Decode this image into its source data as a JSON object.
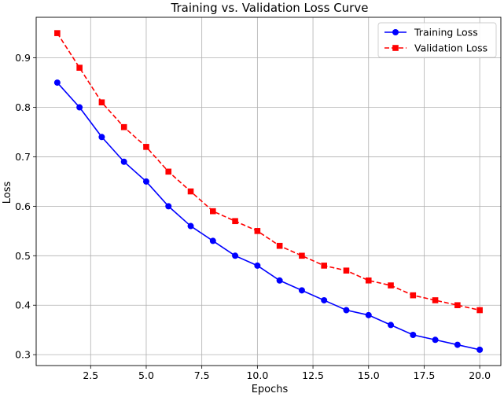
{
  "chart_data": {
    "type": "line",
    "title": "Training vs. Validation Loss Curve",
    "xlabel": "Epochs",
    "ylabel": "Loss",
    "xlim": [
      0.05,
      20.95
    ],
    "ylim": [
      0.278,
      0.982
    ],
    "xticks": [
      2.5,
      5.0,
      7.5,
      10.0,
      12.5,
      15.0,
      17.5,
      20.0
    ],
    "yticks": [
      0.3,
      0.4,
      0.5,
      0.6,
      0.7,
      0.8,
      0.9
    ],
    "grid": true,
    "legend_position": "top-right",
    "x": [
      1,
      2,
      3,
      4,
      5,
      6,
      7,
      8,
      9,
      10,
      11,
      12,
      13,
      14,
      15,
      16,
      17,
      18,
      19,
      20
    ],
    "series": [
      {
        "name": "Training Loss",
        "color": "#0000ff",
        "marker": "circle",
        "linestyle": "solid",
        "values": [
          0.85,
          0.8,
          0.74,
          0.69,
          0.65,
          0.6,
          0.56,
          0.53,
          0.5,
          0.48,
          0.45,
          0.43,
          0.41,
          0.39,
          0.38,
          0.36,
          0.34,
          0.33,
          0.32,
          0.31
        ]
      },
      {
        "name": "Validation Loss",
        "color": "#ff0000",
        "marker": "square",
        "linestyle": "dashed",
        "values": [
          0.95,
          0.88,
          0.81,
          0.76,
          0.72,
          0.67,
          0.63,
          0.59,
          0.57,
          0.55,
          0.52,
          0.5,
          0.48,
          0.47,
          0.45,
          0.44,
          0.42,
          0.41,
          0.4,
          0.39
        ]
      }
    ]
  }
}
